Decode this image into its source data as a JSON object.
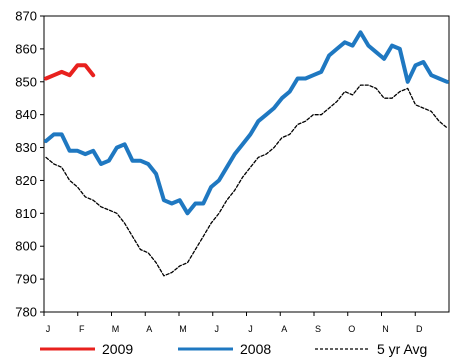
{
  "chart_data": {
    "type": "line",
    "title": "",
    "xlabel": "",
    "ylabel": "",
    "ylim": [
      780,
      870
    ],
    "yticks": [
      780,
      790,
      800,
      810,
      820,
      830,
      840,
      850,
      860,
      870
    ],
    "month_labels": [
      "J",
      "F",
      "M",
      "A",
      "M",
      "J",
      "J",
      "A",
      "S",
      "O",
      "N",
      "D"
    ],
    "weeks_range": [
      1,
      52
    ],
    "grid": false,
    "legend_position": "bottom",
    "series": [
      {
        "name": "2009",
        "color": "#e8211e",
        "style": "solid",
        "x": [
          1,
          2,
          3,
          4,
          5,
          6,
          7,
          8
        ],
        "values": [
          851,
          852,
          853,
          852,
          855,
          855,
          852,
          null
        ]
      },
      {
        "name": "2008",
        "color": "#1f78c1",
        "style": "solid",
        "x": [
          1,
          2,
          3,
          4,
          5,
          6,
          7,
          8,
          9,
          10,
          11,
          12,
          13,
          14,
          15,
          16,
          17,
          18,
          19,
          20,
          21,
          22,
          23,
          24,
          25,
          26,
          27,
          28,
          29,
          30,
          31,
          32,
          33,
          34,
          35,
          36,
          37,
          38,
          39,
          40,
          41,
          42,
          43,
          44,
          45,
          46,
          47,
          48,
          49,
          50,
          51,
          52
        ],
        "values": [
          832,
          834,
          834,
          829,
          829,
          828,
          829,
          825,
          826,
          830,
          831,
          826,
          826,
          825,
          822,
          814,
          813,
          814,
          810,
          813,
          813,
          818,
          820,
          824,
          828,
          831,
          834,
          838,
          840,
          842,
          845,
          847,
          851,
          851,
          852,
          853,
          858,
          860,
          862,
          861,
          865,
          861,
          859,
          857,
          861,
          860,
          850,
          855,
          856,
          852,
          851,
          850
        ]
      },
      {
        "name": "5 yr Avg",
        "color": "#000000",
        "style": "dashed",
        "x": [
          1,
          2,
          3,
          4,
          5,
          6,
          7,
          8,
          9,
          10,
          11,
          12,
          13,
          14,
          15,
          16,
          17,
          18,
          19,
          20,
          21,
          22,
          23,
          24,
          25,
          26,
          27,
          28,
          29,
          30,
          31,
          32,
          33,
          34,
          35,
          36,
          37,
          38,
          39,
          40,
          41,
          42,
          43,
          44,
          45,
          46,
          47,
          48,
          49,
          50,
          51,
          52
        ],
        "values": [
          827,
          825,
          824,
          820,
          818,
          815,
          814,
          812,
          811,
          810,
          807,
          803,
          799,
          798,
          795,
          791,
          792,
          794,
          795,
          799,
          803,
          807,
          810,
          814,
          817,
          821,
          824,
          827,
          828,
          830,
          833,
          834,
          837,
          838,
          840,
          840,
          842,
          844,
          847,
          846,
          849,
          849,
          848,
          845,
          845,
          847,
          848,
          843,
          842,
          841,
          838,
          836
        ]
      }
    ]
  }
}
